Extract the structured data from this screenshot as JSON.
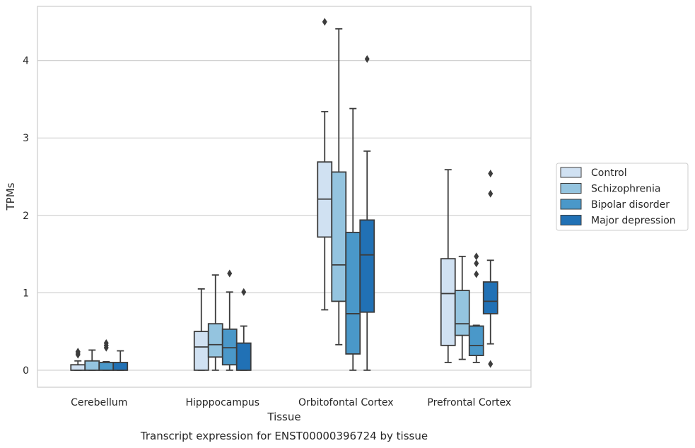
{
  "chart_data": {
    "type": "box",
    "caption": "Transcript expression for ENST00000396724 by tissue",
    "xlabel": "Tissue",
    "ylabel": "TPMs",
    "ylim": [
      -0.22,
      4.7
    ],
    "yticks": [
      "0",
      "1",
      "2",
      "3",
      "4"
    ],
    "grid": "horizontal",
    "legend_position": "outside-right",
    "categories": [
      "Cerebellum",
      "Hipppocampus",
      "Orbitofontal Cortex",
      "Prefrontal Cortex"
    ],
    "series": [
      {
        "name": "Control",
        "color": "#d0e1f2",
        "boxes": [
          {
            "whislo": 0,
            "q1": 0,
            "med": 0,
            "q3": 0.07,
            "whishi": 0.12,
            "fliers": [
              0.2,
              0.22,
              0.24
            ]
          },
          {
            "whislo": 0,
            "q1": 0,
            "med": 0.3,
            "q3": 0.5,
            "whishi": 1.05,
            "fliers": []
          },
          {
            "whislo": 0.78,
            "q1": 1.72,
            "med": 2.21,
            "q3": 2.69,
            "whishi": 3.34,
            "fliers": [
              4.5
            ]
          },
          {
            "whislo": 0.1,
            "q1": 0.32,
            "med": 0.99,
            "q3": 1.44,
            "whishi": 2.59,
            "fliers": []
          }
        ]
      },
      {
        "name": "Schizophrenia",
        "color": "#94c4df",
        "boxes": [
          {
            "whislo": 0,
            "q1": 0,
            "med": 0,
            "q3": 0.12,
            "whishi": 0.26,
            "fliers": []
          },
          {
            "whislo": 0,
            "q1": 0.17,
            "med": 0.33,
            "q3": 0.6,
            "whishi": 1.23,
            "fliers": []
          },
          {
            "whislo": 0.33,
            "q1": 0.89,
            "med": 1.36,
            "q3": 2.56,
            "whishi": 4.41,
            "fliers": []
          },
          {
            "whislo": 0.14,
            "q1": 0.45,
            "med": 0.6,
            "q3": 1.03,
            "whishi": 1.47,
            "fliers": []
          }
        ]
      },
      {
        "name": "Bipolar disorder",
        "color": "#4a98c9",
        "boxes": [
          {
            "whislo": 0,
            "q1": 0,
            "med": 0,
            "q3": 0.1,
            "whishi": 0.11,
            "fliers": [
              0.29,
              0.32,
              0.35
            ]
          },
          {
            "whislo": 0,
            "q1": 0.07,
            "med": 0.29,
            "q3": 0.53,
            "whishi": 1.01,
            "fliers": [
              1.25
            ]
          },
          {
            "whislo": 0,
            "q1": 0.21,
            "med": 0.73,
            "q3": 1.78,
            "whishi": 3.38,
            "fliers": []
          },
          {
            "whislo": 0.1,
            "q1": 0.19,
            "med": 0.32,
            "q3": 0.57,
            "whishi": 0.58,
            "fliers": [
              1.24,
              1.38,
              1.47
            ]
          }
        ]
      },
      {
        "name": "Major depression",
        "color": "#2171b5",
        "boxes": [
          {
            "whislo": 0,
            "q1": 0,
            "med": 0,
            "q3": 0.1,
            "whishi": 0.25,
            "fliers": []
          },
          {
            "whislo": 0,
            "q1": 0,
            "med": 0,
            "q3": 0.35,
            "whishi": 0.57,
            "fliers": [
              1.01
            ]
          },
          {
            "whislo": 0,
            "q1": 0.75,
            "med": 1.49,
            "q3": 1.94,
            "whishi": 2.83,
            "fliers": [
              4.02
            ]
          },
          {
            "whislo": 0.34,
            "q1": 0.73,
            "med": 0.89,
            "q3": 1.14,
            "whishi": 1.42,
            "fliers": [
              0.08,
              2.28,
              2.54
            ]
          }
        ]
      }
    ]
  }
}
